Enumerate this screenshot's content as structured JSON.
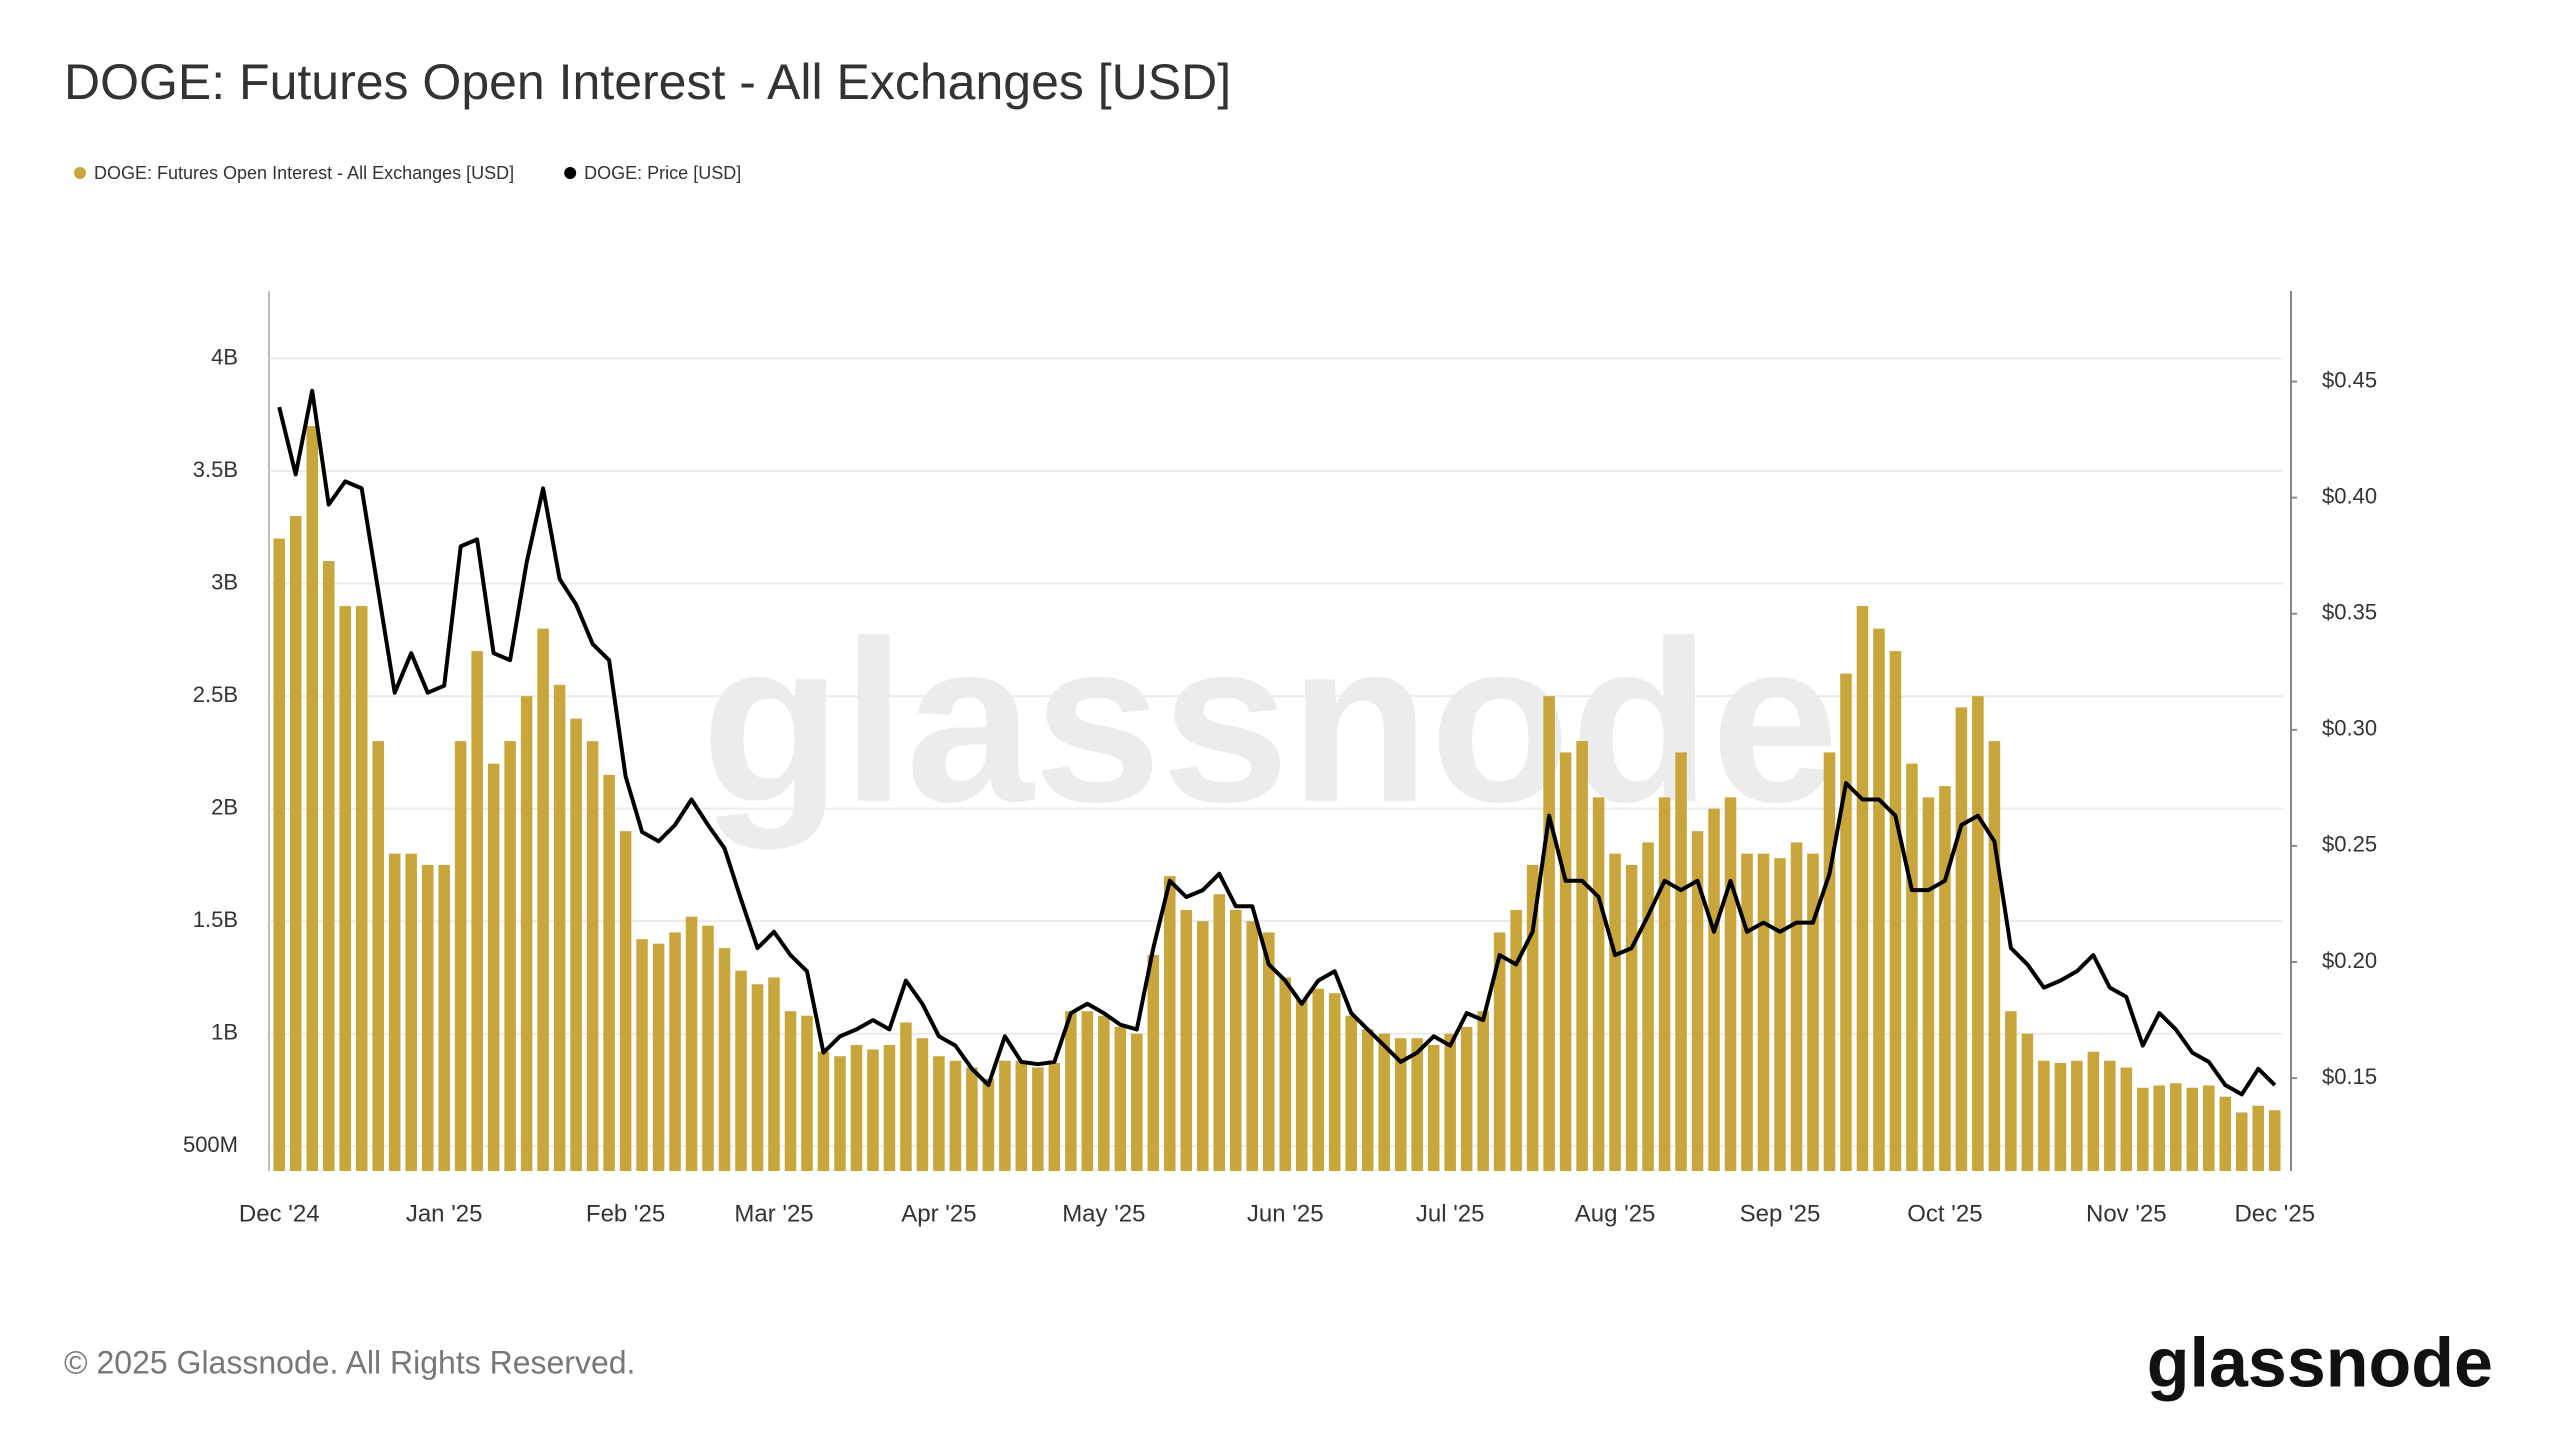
{
  "chart_data": {
    "type": "bar-line",
    "title": "DOGE: Futures Open Interest - All Exchanges [USD]",
    "categories": [
      "Dec '24",
      null,
      null,
      null,
      null,
      null,
      null,
      null,
      null,
      null,
      "Jan '25",
      null,
      null,
      null,
      null,
      null,
      null,
      null,
      null,
      null,
      null,
      "Feb '25",
      null,
      null,
      null,
      null,
      null,
      null,
      null,
      null,
      "Mar '25",
      null,
      null,
      null,
      null,
      null,
      null,
      null,
      null,
      null,
      "Apr '25",
      null,
      null,
      null,
      null,
      null,
      null,
      null,
      null,
      null,
      "May '25",
      null,
      null,
      null,
      null,
      null,
      null,
      null,
      null,
      null,
      null,
      "Jun '25",
      null,
      null,
      null,
      null,
      null,
      null,
      null,
      null,
      null,
      "Jul '25",
      null,
      null,
      null,
      null,
      null,
      null,
      null,
      null,
      null,
      "Aug '25",
      null,
      null,
      null,
      null,
      null,
      null,
      null,
      null,
      null,
      "Sep '25",
      null,
      null,
      null,
      null,
      null,
      null,
      null,
      null,
      null,
      "Oct '25",
      null,
      null,
      null,
      null,
      null,
      null,
      null,
      null,
      null,
      null,
      "Nov '25",
      null,
      null,
      null,
      null,
      null,
      null,
      null,
      null,
      "Dec '25"
    ],
    "series": [
      {
        "name": "DOGE: Futures Open Interest - All Exchanges [USD]",
        "color": "#c9a63c",
        "kind": "bar",
        "values": [
          3200000000.0,
          3300000000.0,
          3700000000.0,
          3100000000.0,
          2900000000.0,
          2900000000.0,
          2300000000.0,
          1800000000.0,
          1800000000.0,
          1750000000.0,
          1750000000.0,
          2300000000.0,
          2700000000.0,
          2200000000.0,
          2300000000.0,
          2500000000.0,
          2800000000.0,
          2550000000.0,
          2400000000.0,
          2300000000.0,
          2150000000.0,
          1900000000.0,
          1420000000.0,
          1400000000.0,
          1450000000.0,
          1520000000.0,
          1480000000.0,
          1380000000.0,
          1280000000.0,
          1220000000.0,
          1250000000.0,
          1100000000.0,
          1080000000.0,
          920000000.0,
          900000000.0,
          950000000.0,
          930000000.0,
          950000000.0,
          1050000000.0,
          980000000.0,
          900000000.0,
          880000000.0,
          850000000.0,
          800000000.0,
          880000000.0,
          880000000.0,
          850000000.0,
          870000000.0,
          1100000000.0,
          1100000000.0,
          1080000000.0,
          1030000000.0,
          1000000000.0,
          1350000000.0,
          1700000000.0,
          1550000000.0,
          1500000000.0,
          1620000000.0,
          1550000000.0,
          1500000000.0,
          1450000000.0,
          1250000000.0,
          1150000000.0,
          1200000000.0,
          1180000000.0,
          1080000000.0,
          1020000000.0,
          1000000000.0,
          980000000.0,
          980000000.0,
          950000000.0,
          1000000000.0,
          1030000000.0,
          1100000000.0,
          1450000000.0,
          1550000000.0,
          1750000000.0,
          2500000000.0,
          2250000000.0,
          2300000000.0,
          2050000000.0,
          1800000000.0,
          1750000000.0,
          1850000000.0,
          2050000000.0,
          2250000000.0,
          1900000000.0,
          2000000000.0,
          2050000000.0,
          1800000000.0,
          1800000000.0,
          1780000000.0,
          1850000000.0,
          1800000000.0,
          2250000000.0,
          2600000000.0,
          2900000000.0,
          2800000000.0,
          2700000000.0,
          2200000000.0,
          2050000000.0,
          2100000000.0,
          2450000000.0,
          2500000000.0,
          2300000000.0,
          1100000000.0,
          1000000000.0,
          880000000.0,
          870000000.0,
          880000000.0,
          920000000.0,
          880000000.0,
          850000000.0,
          760000000.0,
          770000000.0,
          780000000.0,
          760000000.0,
          770000000.0,
          720000000.0,
          650000000.0,
          680000000.0,
          660000000.0
        ]
      },
      {
        "name": "DOGE: Price [USD]",
        "color": "#000000",
        "kind": "line",
        "axis": "y2",
        "values": [
          0.439,
          0.41,
          0.446,
          0.397,
          0.407,
          0.404,
          0.36,
          0.316,
          0.333,
          0.316,
          0.319,
          0.379,
          0.382,
          0.333,
          0.33,
          0.372,
          0.404,
          0.365,
          0.354,
          0.337,
          0.33,
          0.28,
          0.256,
          0.252,
          0.259,
          0.27,
          0.259,
          0.249,
          0.227,
          0.206,
          0.213,
          0.203,
          0.196,
          0.161,
          0.168,
          0.171,
          0.175,
          0.171,
          0.192,
          0.182,
          0.168,
          0.164,
          0.154,
          0.147,
          0.168,
          0.157,
          0.156,
          0.157,
          0.178,
          0.182,
          0.178,
          0.173,
          0.171,
          0.206,
          0.235,
          0.228,
          0.231,
          0.238,
          0.224,
          0.224,
          0.199,
          0.192,
          0.182,
          0.192,
          0.196,
          0.178,
          0.171,
          0.164,
          0.157,
          0.161,
          0.168,
          0.164,
          0.178,
          0.175,
          0.203,
          0.199,
          0.213,
          0.263,
          0.235,
          0.235,
          0.228,
          0.203,
          0.206,
          0.22,
          0.235,
          0.231,
          0.235,
          0.213,
          0.235,
          0.213,
          0.217,
          0.213,
          0.217,
          0.217,
          0.238,
          0.277,
          0.27,
          0.27,
          0.263,
          0.231,
          0.231,
          0.235,
          0.259,
          0.263,
          0.252,
          0.206,
          0.199,
          0.189,
          0.192,
          0.196,
          0.203,
          0.189,
          0.185,
          0.164,
          0.178,
          0.171,
          0.161,
          0.157,
          0.147,
          0.143,
          0.154,
          0.147
        ]
      }
    ],
    "ylim": [
      390000000,
      4300000000
    ],
    "yticks": [
      {
        "value": 500000000,
        "label": "500M"
      },
      {
        "value": 1000000000,
        "label": "1B"
      },
      {
        "value": 1500000000,
        "label": "1.5B"
      },
      {
        "value": 2000000000,
        "label": "2B"
      },
      {
        "value": 2500000000,
        "label": "2.5B"
      },
      {
        "value": 3000000000,
        "label": "3B"
      },
      {
        "value": 3500000000,
        "label": "3.5B"
      },
      {
        "value": 4000000000,
        "label": "4B"
      }
    ],
    "y2lim": [
      0.11,
      0.489
    ],
    "y2ticks": [
      {
        "value": 0.15,
        "label": "$0.15"
      },
      {
        "value": 0.2,
        "label": "$0.20"
      },
      {
        "value": 0.25,
        "label": "$0.25"
      },
      {
        "value": 0.3,
        "label": "$0.30"
      },
      {
        "value": 0.35,
        "label": "$0.35"
      },
      {
        "value": 0.4,
        "label": "$0.40"
      },
      {
        "value": 0.45,
        "label": "$0.45"
      }
    ],
    "grid": true,
    "legend": "top-left"
  },
  "watermark": "glassnode",
  "footer": "© 2025 Glassnode. All Rights Reserved.",
  "logo": "glassnode"
}
